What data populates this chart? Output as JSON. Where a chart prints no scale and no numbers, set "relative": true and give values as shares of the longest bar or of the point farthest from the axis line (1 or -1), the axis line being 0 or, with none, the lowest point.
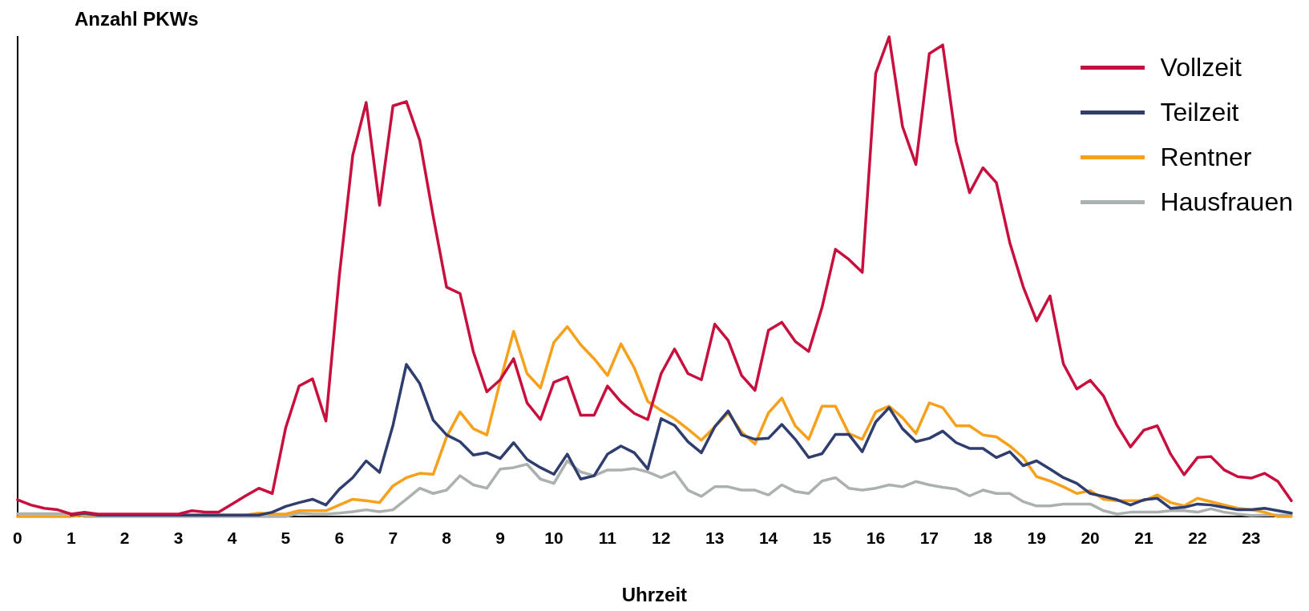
{
  "chart_data": {
    "type": "line",
    "title": "Anzahl PKWs",
    "xlabel": "Uhrzeit",
    "relative": true,
    "x": [
      0,
      0.25,
      0.5,
      0.75,
      1,
      1.25,
      1.5,
      1.75,
      2,
      2.25,
      2.5,
      2.75,
      3,
      3.25,
      3.5,
      3.75,
      4,
      4.25,
      4.5,
      4.75,
      5,
      5.25,
      5.5,
      5.75,
      6,
      6.25,
      6.5,
      6.75,
      7,
      7.25,
      7.5,
      7.75,
      8,
      8.25,
      8.5,
      8.75,
      9,
      9.25,
      9.5,
      9.75,
      10,
      10.25,
      10.5,
      10.75,
      11,
      11.25,
      11.5,
      11.75,
      12,
      12.25,
      12.5,
      12.75,
      13,
      13.25,
      13.5,
      13.75,
      14,
      14.25,
      14.5,
      14.75,
      15,
      15.25,
      15.5,
      15.75,
      16,
      16.25,
      16.5,
      16.75,
      17,
      17.25,
      17.5,
      17.75,
      18,
      18.25,
      18.5,
      18.75,
      19,
      19.25,
      19.5,
      19.75,
      20,
      20.25,
      20.5,
      20.75,
      21,
      21.25,
      21.5,
      21.75,
      22,
      22.25,
      22.5,
      22.75,
      23,
      23.25,
      23.5,
      23.75
    ],
    "xlim": [
      0,
      23.75
    ],
    "xticks": [
      0,
      1,
      2,
      3,
      4,
      5,
      6,
      7,
      8,
      9,
      10,
      11,
      12,
      13,
      14,
      15,
      16,
      17,
      18,
      19,
      20,
      21,
      22,
      23
    ],
    "grid": false,
    "legend": "top right",
    "marker": "none",
    "line_style": "solid",
    "series": [
      {
        "name": "Vollzeit",
        "color": "#c8103e",
        "values": [
          0.035,
          0.024,
          0.017,
          0.014,
          0.005,
          0.009,
          0.005,
          0.005,
          0.005,
          0.005,
          0.005,
          0.005,
          0.005,
          0.012,
          0.009,
          0.009,
          0.026,
          0.043,
          0.059,
          0.048,
          0.185,
          0.272,
          0.287,
          0.199,
          0.502,
          0.753,
          0.863,
          0.649,
          0.856,
          0.865,
          0.784,
          0.626,
          0.478,
          0.465,
          0.343,
          0.26,
          0.285,
          0.329,
          0.237,
          0.202,
          0.28,
          0.291,
          0.211,
          0.211,
          0.272,
          0.239,
          0.215,
          0.202,
          0.298,
          0.349,
          0.298,
          0.285,
          0.401,
          0.367,
          0.294,
          0.263,
          0.388,
          0.405,
          0.365,
          0.344,
          0.436,
          0.557,
          0.536,
          0.509,
          0.924,
          1,
          0.813,
          0.734,
          0.965,
          0.983,
          0.782,
          0.675,
          0.727,
          0.696,
          0.571,
          0.479,
          0.408,
          0.46,
          0.318,
          0.266,
          0.284,
          0.251,
          0.19,
          0.145,
          0.18,
          0.189,
          0.13,
          0.087,
          0.123,
          0.125,
          0.097,
          0.083,
          0.08,
          0.09,
          0.073,
          0.033
        ]
      },
      {
        "name": "Teilzeit",
        "color": "#2f3e6e",
        "values": [
          null,
          null,
          null,
          null,
          0.003,
          0.007,
          0.003,
          0.003,
          0.003,
          0.003,
          0.003,
          0.003,
          0.003,
          0.003,
          0.003,
          0.003,
          0.003,
          0.003,
          0.003,
          0.009,
          0.021,
          0.029,
          0.036,
          0.024,
          0.057,
          0.081,
          0.116,
          0.092,
          0.19,
          0.317,
          0.277,
          0.201,
          0.17,
          0.156,
          0.128,
          0.133,
          0.121,
          0.154,
          0.119,
          0.102,
          0.088,
          0.13,
          0.078,
          0.085,
          0.13,
          0.147,
          0.133,
          0.099,
          0.204,
          0.19,
          0.156,
          0.133,
          0.187,
          0.22,
          0.17,
          0.161,
          0.163,
          0.192,
          0.161,
          0.123,
          0.131,
          0.171,
          0.171,
          0.135,
          0.197,
          0.227,
          0.183,
          0.156,
          0.163,
          0.178,
          0.154,
          0.142,
          0.142,
          0.123,
          0.135,
          0.106,
          0.116,
          0.099,
          0.081,
          0.069,
          0.048,
          0.042,
          0.035,
          0.024,
          0.035,
          0.038,
          0.017,
          0.019,
          0.026,
          0.024,
          0.019,
          0.014,
          0.014,
          0.017,
          0.012,
          0.007
        ]
      },
      {
        "name": "Rentner",
        "color": "#f7a01c",
        "values": [
          0,
          0,
          0,
          0,
          0,
          0.003,
          0.003,
          0.003,
          0.003,
          0.003,
          0.003,
          0.003,
          0.003,
          0.003,
          0.003,
          0.003,
          0.003,
          0.003,
          0.007,
          0.005,
          0.005,
          0.012,
          0.012,
          0.012,
          0.024,
          0.036,
          0.033,
          0.029,
          0.064,
          0.081,
          0.09,
          0.088,
          0.166,
          0.218,
          0.183,
          0.17,
          0.282,
          0.386,
          0.298,
          0.268,
          0.363,
          0.396,
          0.358,
          0.329,
          0.294,
          0.36,
          0.31,
          0.24,
          0.221,
          0.204,
          0.182,
          0.159,
          0.187,
          0.216,
          0.176,
          0.151,
          0.216,
          0.247,
          0.189,
          0.161,
          0.23,
          0.23,
          0.173,
          0.161,
          0.218,
          0.23,
          0.206,
          0.173,
          0.237,
          0.227,
          0.189,
          0.189,
          0.17,
          0.166,
          0.147,
          0.123,
          0.083,
          0.074,
          0.062,
          0.048,
          0.054,
          0.036,
          0.033,
          0.033,
          0.033,
          0.045,
          0.029,
          0.022,
          0.038,
          0.031,
          0.024,
          0.017,
          0.014,
          0.009,
          0,
          0
        ]
      },
      {
        "name": "Hausfrauen",
        "color": "#abb1b0",
        "values": [
          0.006,
          0.006,
          0.006,
          0.006,
          0.006,
          0,
          0,
          0,
          0,
          0,
          0,
          0,
          0,
          0,
          0,
          0,
          0,
          0,
          0,
          0,
          0,
          0.007,
          0.005,
          0.005,
          0.007,
          0.01,
          0.014,
          0.01,
          0.014,
          0.036,
          0.059,
          0.048,
          0.055,
          0.085,
          0.066,
          0.059,
          0.099,
          0.102,
          0.109,
          0.078,
          0.069,
          0.116,
          0.093,
          0.085,
          0.097,
          0.097,
          0.1,
          0.093,
          0.081,
          0.093,
          0.055,
          0.042,
          0.062,
          0.062,
          0.055,
          0.055,
          0.045,
          0.066,
          0.052,
          0.048,
          0.074,
          0.081,
          0.059,
          0.055,
          0.059,
          0.066,
          0.062,
          0.073,
          0.066,
          0.061,
          0.057,
          0.043,
          0.055,
          0.048,
          0.048,
          0.031,
          0.022,
          0.022,
          0.026,
          0.026,
          0.026,
          0.012,
          0.005,
          0.009,
          0.009,
          0.009,
          0.012,
          0.012,
          0.009,
          0.016,
          0.009,
          0.005,
          0.002,
          0.003,
          0.003,
          0.003
        ]
      }
    ]
  }
}
